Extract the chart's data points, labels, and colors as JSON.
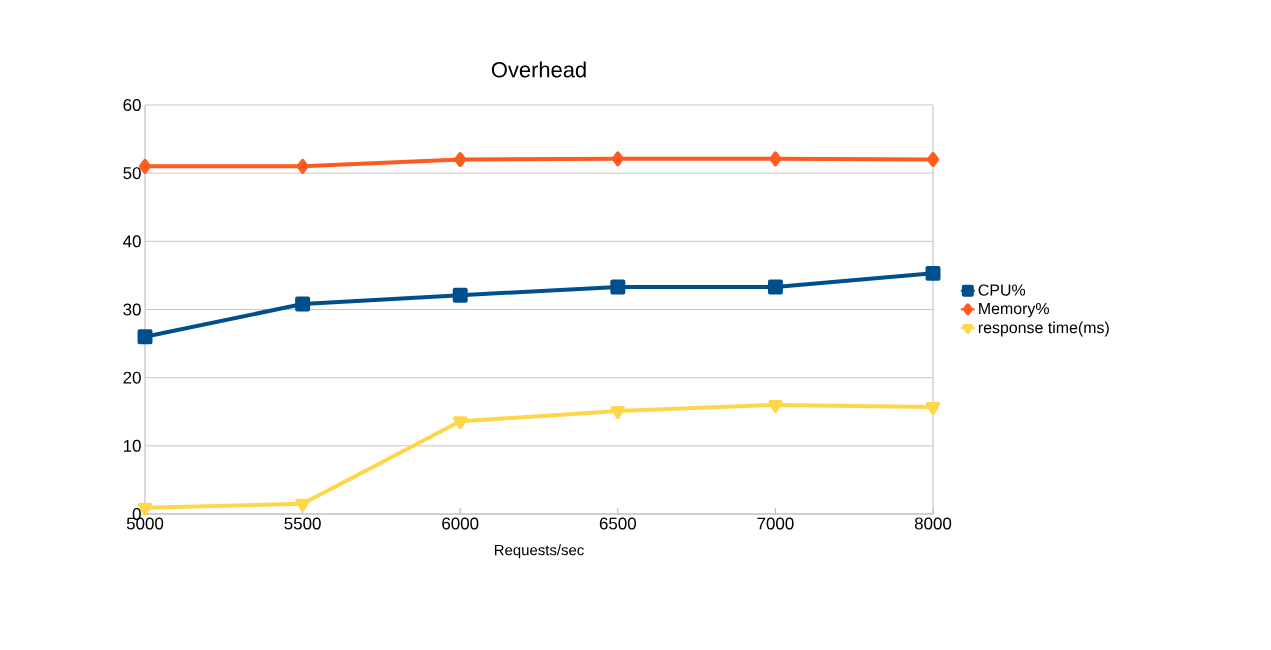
{
  "chart_data": {
    "type": "line",
    "title": "Overhead",
    "xlabel": "Requests/sec",
    "categories": [
      "5000",
      "5500",
      "6000",
      "6500",
      "7000",
      "8000"
    ],
    "series": [
      {
        "name": "CPU%",
        "color": "#004f8b",
        "marker": "square",
        "values": [
          26,
          30.8,
          32.1,
          33.3,
          33.3,
          35.3
        ]
      },
      {
        "name": "Memory%",
        "color": "#ff5a1f",
        "marker": "diamond",
        "values": [
          51,
          51,
          52,
          52.1,
          52.1,
          52
        ]
      },
      {
        "name": "response time(ms)",
        "color": "#ffd54a",
        "marker": "triangle",
        "values": [
          0.9,
          1.5,
          13.6,
          15.1,
          16,
          15.7
        ]
      }
    ],
    "ylim": [
      0,
      60
    ],
    "yticks": [
      0,
      10,
      20,
      30,
      40,
      50,
      60
    ],
    "grid": "y",
    "legend": "right"
  }
}
